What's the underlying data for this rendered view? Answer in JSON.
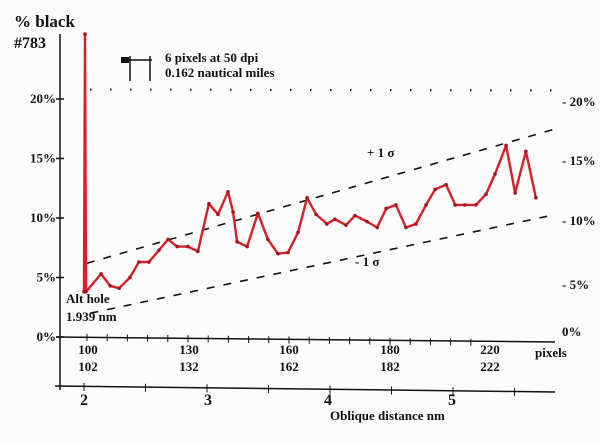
{
  "chart_data": {
    "type": "line",
    "title": "% black",
    "subtitle": "#783",
    "ylabel": "% black",
    "xlabel": "Oblique distance nm",
    "x_unit_label": "pixels",
    "ylim": [
      0,
      26
    ],
    "xlim": [
      99,
      240
    ],
    "y_ticks_left": [
      "0%",
      "5%",
      "10%",
      "15%",
      "20%"
    ],
    "y_ticks_right": [
      "0%",
      "5%",
      "10%",
      "15%",
      "20%"
    ],
    "y_tick_values": [
      0,
      5,
      10,
      15,
      20
    ],
    "x_ticks_pixels": [
      "100",
      "130",
      "160",
      "180",
      "220"
    ],
    "x_ticks_pixels_second_row": [
      "102",
      "132",
      "162",
      "182",
      "222"
    ],
    "x_ticks_nm": [
      "2",
      "3",
      "4",
      "5"
    ],
    "scale_bar": {
      "line1": "6 pixels at 50 dpi",
      "line2": "0.162 nautical miles"
    },
    "annotations": {
      "plus_sigma": "+ 1 σ",
      "minus_sigma": "- 1 σ",
      "alt_hole_1": "Alt hole",
      "alt_hole_2": "1.939 nm"
    },
    "reference_line_value": 20.8,
    "plus_sigma_line": {
      "x": [
        100,
        240
      ],
      "y": [
        6.2,
        17.5
      ]
    },
    "minus_sigma_line": {
      "x": [
        101,
        240
      ],
      "y": [
        2.0,
        10.3
      ]
    },
    "series": [
      {
        "name": "% black",
        "color": "#d81e28",
        "x": [
          99.1,
          99.4,
          99.7,
          104.2,
          106.9,
          109.6,
          112.8,
          115.5,
          118.5,
          121.5,
          124.2,
          126.9,
          130.1,
          133.1,
          136.4,
          139.1,
          142.1,
          143.6,
          144.8,
          147.8,
          151.0,
          154.0,
          157.0,
          160.0,
          163.0,
          165.7,
          168.4,
          171.6,
          174.0,
          177.3,
          180.0,
          183.6,
          186.6,
          189.3,
          192.2,
          195.2,
          198.2,
          201.2,
          203.9,
          207.2,
          209.9,
          212.8,
          216.1,
          219.1,
          221.8,
          225.1,
          227.8,
          231.0,
          234.0
        ],
        "y": [
          3.8,
          27.9,
          3.8,
          5.3,
          4.3,
          4.1,
          5.0,
          6.3,
          6.3,
          7.3,
          8.2,
          7.6,
          7.6,
          7.2,
          11.2,
          10.3,
          12.2,
          10.5,
          8.0,
          7.6,
          10.4,
          8.2,
          7.0,
          7.1,
          8.8,
          11.7,
          10.3,
          9.5,
          9.9,
          9.4,
          10.2,
          9.7,
          9.2,
          10.8,
          11.1,
          9.2,
          9.5,
          11.1,
          12.4,
          12.8,
          11.1,
          11.1,
          11.1,
          12.0,
          13.7,
          16.1,
          12.1,
          15.6,
          11.7
        ]
      }
    ]
  }
}
